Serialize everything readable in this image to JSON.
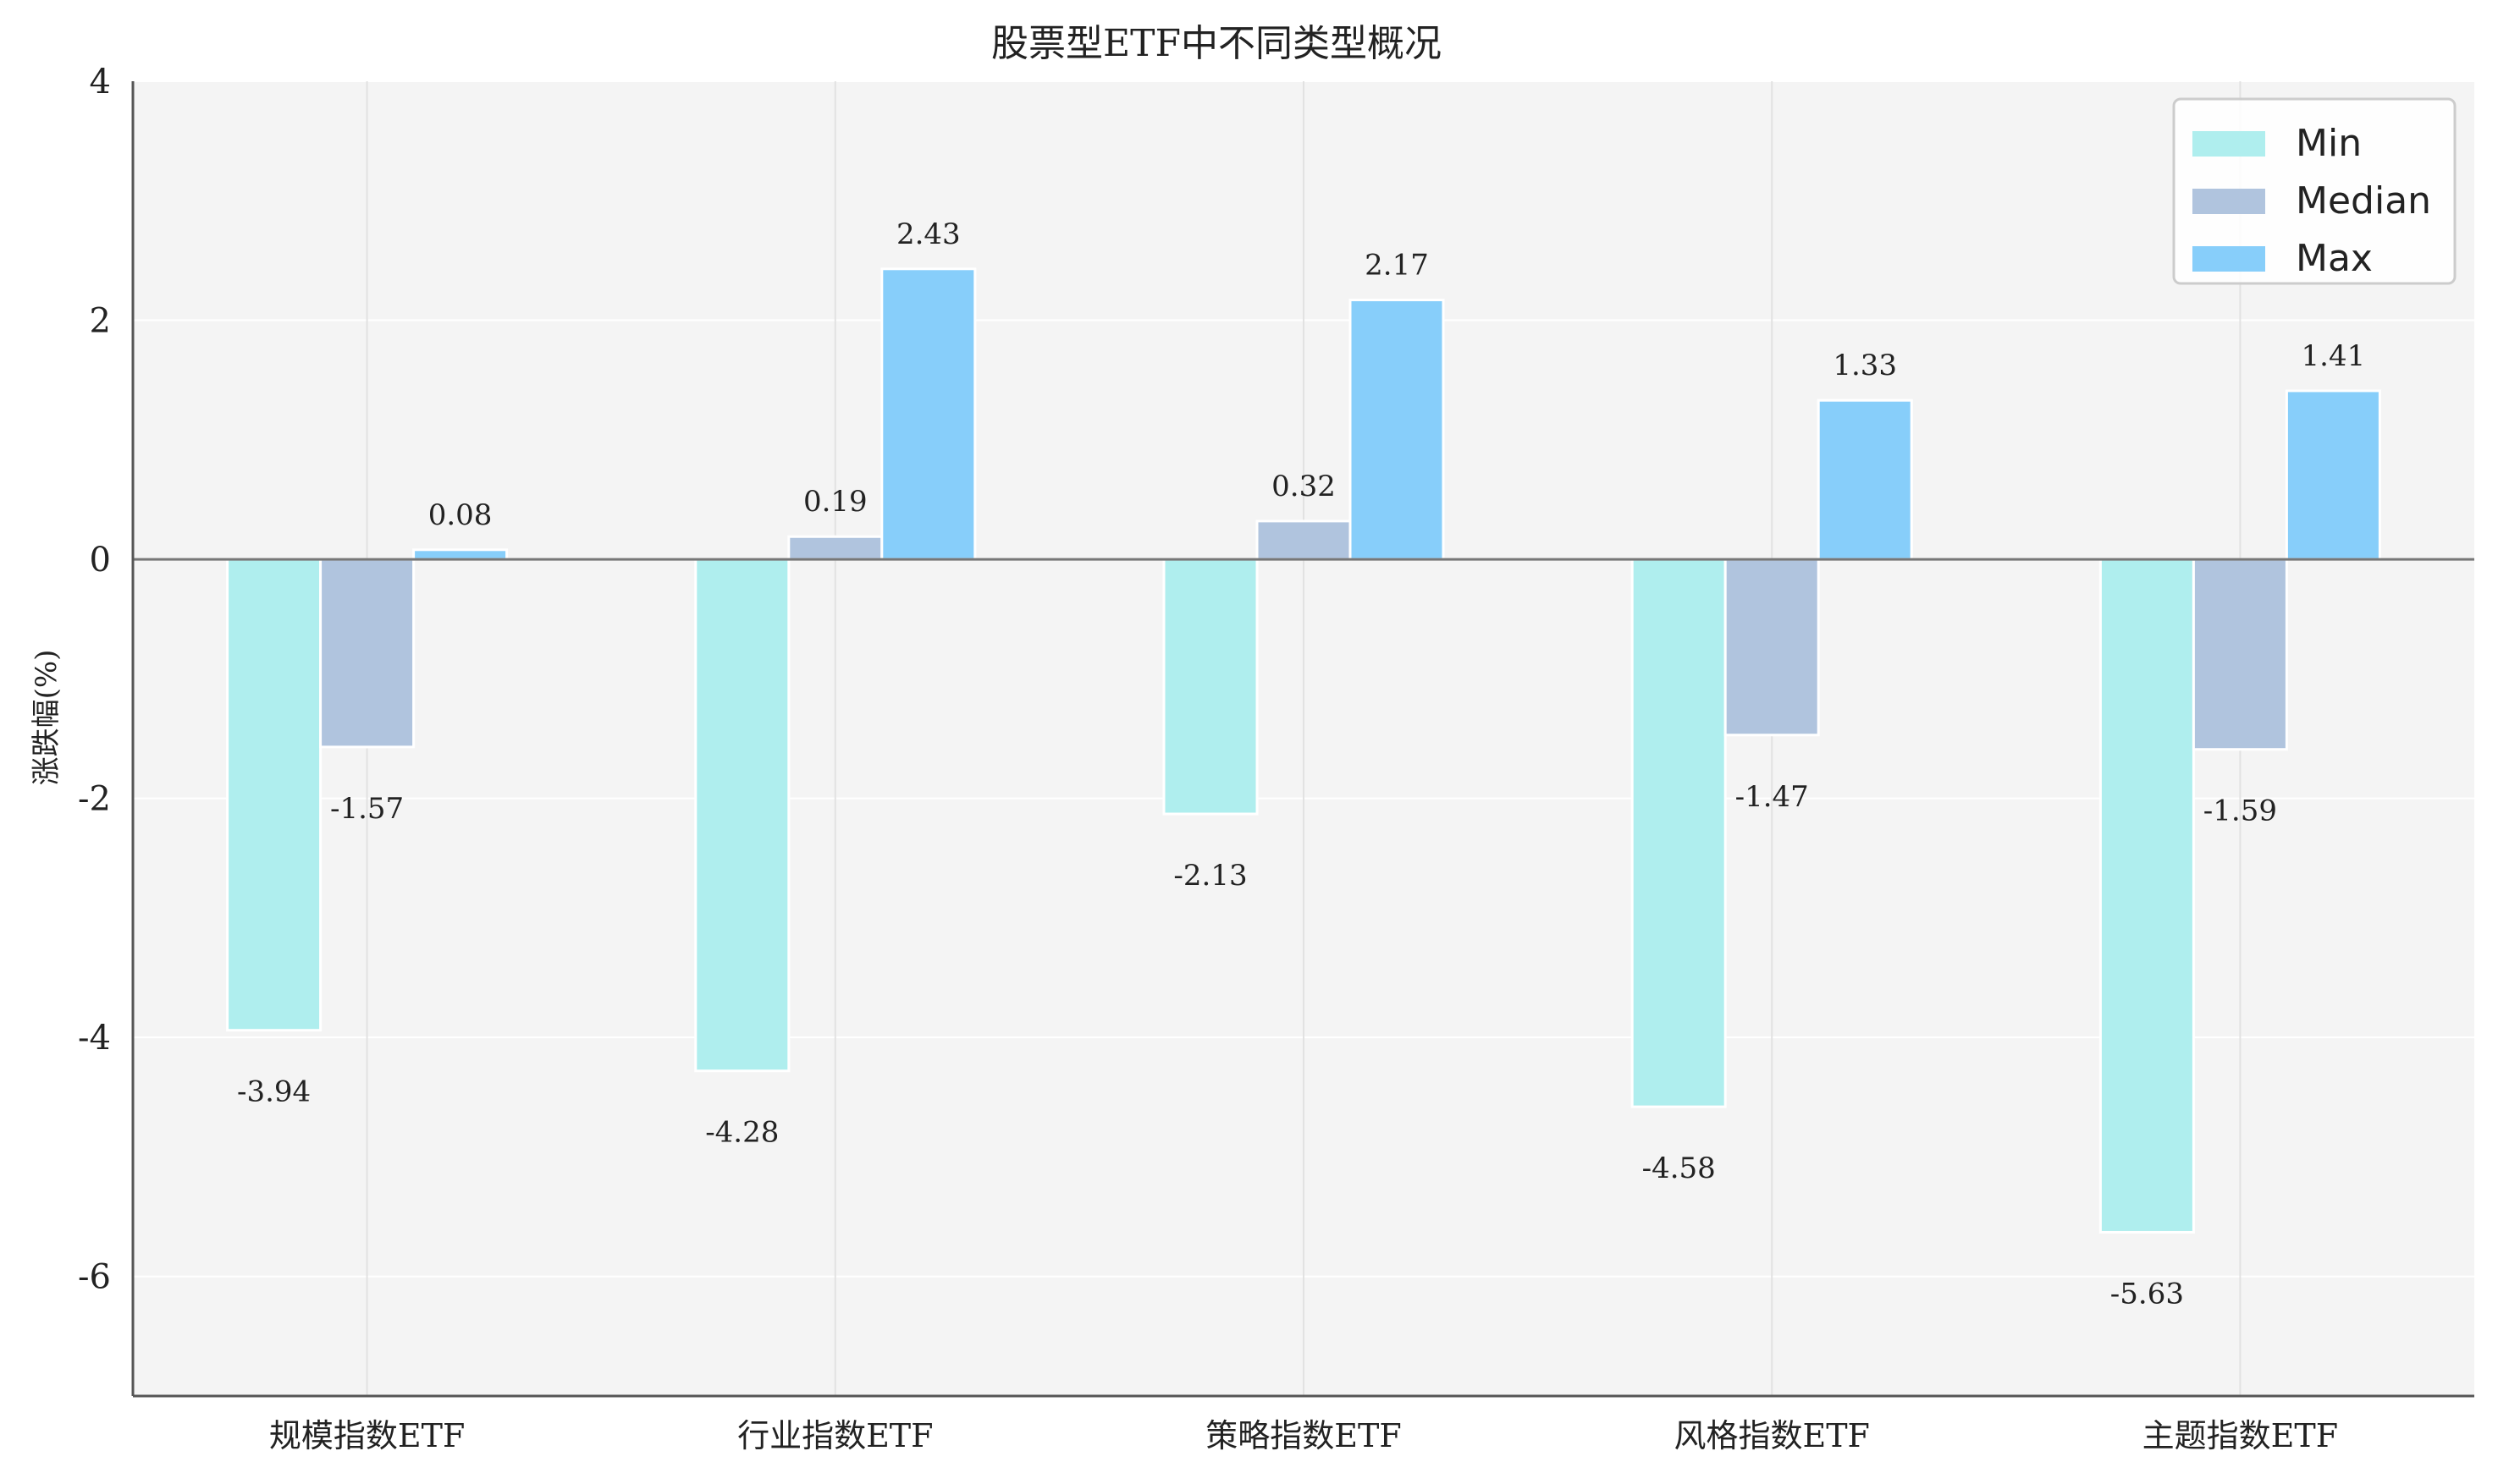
{
  "chart_data": {
    "type": "bar",
    "title": "股票型ETF中不同类型概况",
    "xlabel": "",
    "ylabel": "涨跌幅(%)",
    "categories": [
      "规模指数ETF",
      "行业指数ETF",
      "策略指数ETF",
      "风格指数ETF",
      "主题指数ETF"
    ],
    "series": [
      {
        "name": "Min",
        "color": "#afeeee",
        "values": [
          -3.94,
          -4.28,
          -2.13,
          -4.58,
          -5.63
        ]
      },
      {
        "name": "Median",
        "color": "#b0c4de",
        "values": [
          -1.57,
          0.19,
          0.32,
          -1.47,
          -1.59
        ]
      },
      {
        "name": "Max",
        "color": "#87cefa",
        "values": [
          0.08,
          2.43,
          2.17,
          1.33,
          1.41
        ]
      }
    ],
    "ylim": [
      -7,
      4
    ],
    "yticks": [
      "4",
      "2",
      "0",
      "-2",
      "-4",
      "-6"
    ],
    "ytick_values": [
      4,
      2,
      0,
      -2,
      -4,
      -6
    ],
    "grid": true,
    "legend_position": "top-right",
    "colors": {
      "background": "#f4f4f4",
      "grid": "#ffffff",
      "zero_line": "#777777",
      "axis": "#555555"
    }
  }
}
